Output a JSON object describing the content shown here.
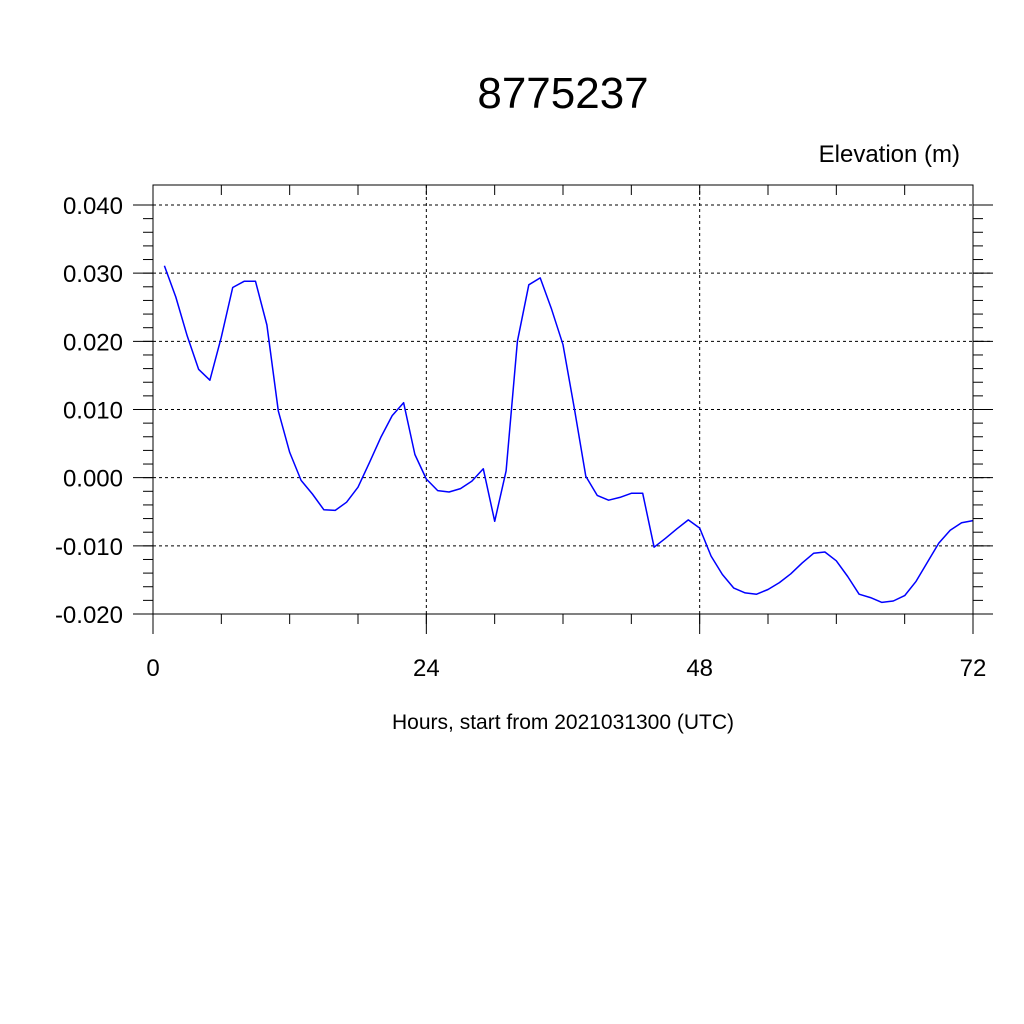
{
  "chart_data": {
    "type": "line",
    "title": "8775237",
    "ylabel": "Elevation (m)",
    "xlabel": "Hours, start from 2021031300 (UTC)",
    "xlim": [
      0,
      72
    ],
    "ylim": [
      -0.02,
      0.04
    ],
    "x_ticks": [
      0,
      24,
      48,
      72
    ],
    "x_tick_labels": [
      "0",
      "24",
      "48",
      "72"
    ],
    "y_ticks": [
      -0.02,
      -0.01,
      0.0,
      0.01,
      0.02,
      0.03,
      0.04
    ],
    "y_tick_labels": [
      "-0.020",
      "-0.010",
      "0.000",
      "0.010",
      "0.020",
      "0.030",
      "0.040"
    ],
    "grid": true,
    "series": [
      {
        "color": "#0000ff",
        "x": [
          1,
          2,
          3,
          4,
          5,
          6,
          7,
          8,
          9,
          10,
          11,
          12,
          13,
          14,
          15,
          16,
          17,
          18,
          19,
          20,
          21,
          22,
          23,
          24,
          25,
          26,
          27,
          28,
          29,
          30,
          31,
          32,
          33,
          34,
          35,
          36,
          37,
          38,
          39,
          40,
          41,
          42,
          43,
          44,
          45,
          46,
          47,
          48,
          49,
          50,
          51,
          52,
          53,
          54,
          55,
          56,
          57,
          58,
          59,
          60,
          61,
          62,
          63,
          64,
          65,
          66,
          67,
          68,
          69,
          70,
          71,
          72
        ],
        "y": [
          0.0311,
          0.0265,
          0.0208,
          0.0159,
          0.0143,
          0.0206,
          0.0279,
          0.0288,
          0.0288,
          0.0224,
          0.0098,
          0.0037,
          -0.0004,
          -0.0024,
          -0.0047,
          -0.0048,
          -0.0036,
          -0.0014,
          0.0022,
          0.0059,
          0.0091,
          0.011,
          0.0034,
          -0.0002,
          -0.0019,
          -0.0021,
          -0.0016,
          -0.0005,
          0.0013,
          -0.0064,
          0.001,
          0.02,
          0.0283,
          0.0293,
          0.0247,
          0.0195,
          0.0101,
          0.0002,
          -0.0026,
          -0.0033,
          -0.0029,
          -0.0023,
          -0.0023,
          -0.0102,
          -0.0089,
          -0.0075,
          -0.0062,
          -0.0074,
          -0.0115,
          -0.0142,
          -0.0162,
          -0.0169,
          -0.0171,
          -0.0164,
          -0.0154,
          -0.0141,
          -0.0125,
          -0.0111,
          -0.0109,
          -0.0122,
          -0.0145,
          -0.0171,
          -0.0176,
          -0.0183,
          -0.0181,
          -0.0173,
          -0.0152,
          -0.0124,
          -0.0096,
          -0.0077,
          -0.0066,
          -0.0063
        ]
      }
    ]
  }
}
